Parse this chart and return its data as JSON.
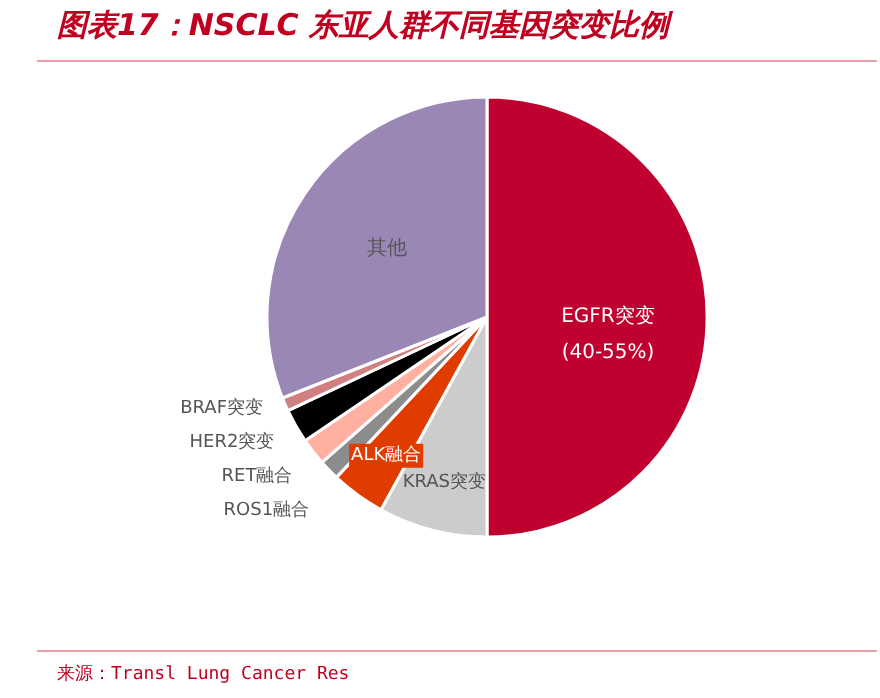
{
  "chart_data": {
    "type": "pie",
    "title": "图表17：NSCLC 东亚人群不同基因突变比例",
    "categories": [
      "EGFR突变",
      "KRAS突变",
      "ALK融合",
      "ROS1融合",
      "RET融合",
      "HER2突变",
      "BRAF突变",
      "其他"
    ],
    "values": [
      50,
      8,
      4,
      1.5,
      2,
      2.5,
      1,
      31
    ],
    "colors": [
      "#c0002f",
      "#cccccc",
      "#e03c00",
      "#8c8c8c",
      "#ffb0a0",
      "#000000",
      "#d08080",
      "#9b87b5"
    ],
    "annotations": [
      {
        "text": "(40-55%)",
        "x": "EGFR突变"
      },
      "来源：Transl Lung Cancer Res"
    ]
  }
}
